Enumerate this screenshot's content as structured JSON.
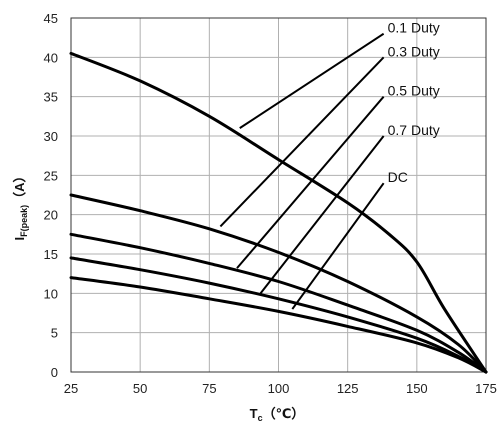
{
  "chart_data": {
    "type": "line",
    "xlabel": {
      "main": "T",
      "sub": "c",
      "unit": "（℃）"
    },
    "ylabel": {
      "main": "I",
      "sub": "F(peak)",
      "unit": "（A）"
    },
    "xlim": [
      25,
      175
    ],
    "ylim": [
      0,
      45
    ],
    "xticks": [
      "25",
      "50",
      "75",
      "100",
      "125",
      "150",
      "175"
    ],
    "yticks": [
      "0",
      "5",
      "10",
      "15",
      "20",
      "25",
      "30",
      "35",
      "40",
      "45"
    ],
    "grid": true,
    "colors": {
      "curve": "#000000",
      "grid": "#b0b0b0",
      "axis": "#333333"
    },
    "series": [
      {
        "name": "0.1 Duty",
        "x": [
          25,
          50,
          75,
          100,
          125,
          140,
          150,
          160,
          175
        ],
        "y": [
          40.5,
          37,
          32.5,
          27,
          21.5,
          17.5,
          14,
          8,
          0
        ]
      },
      {
        "name": "0.3 Duty",
        "x": [
          25,
          50,
          75,
          100,
          125,
          150,
          165,
          175
        ],
        "y": [
          22.5,
          20.5,
          18.2,
          15.2,
          11.5,
          7,
          3.5,
          0
        ]
      },
      {
        "name": "0.5 Duty",
        "x": [
          25,
          50,
          75,
          100,
          125,
          150,
          165,
          175
        ],
        "y": [
          17.5,
          15.8,
          13.8,
          11.5,
          8.5,
          5.3,
          2.5,
          0
        ]
      },
      {
        "name": "0.7 Duty",
        "x": [
          25,
          50,
          75,
          100,
          125,
          150,
          165,
          175
        ],
        "y": [
          14.5,
          13,
          11.3,
          9.3,
          7,
          4.3,
          2,
          0
        ]
      },
      {
        "name": "DC",
        "x": [
          25,
          50,
          75,
          100,
          125,
          150,
          165,
          175
        ],
        "y": [
          12,
          10.8,
          9.3,
          7.7,
          5.8,
          3.7,
          1.8,
          0
        ]
      }
    ],
    "callouts": [
      {
        "label": "0.1 Duty",
        "from": [
          86,
          31
        ],
        "to": [
          138,
          43
        ]
      },
      {
        "label": "0.3 Duty",
        "from": [
          79,
          18.5
        ],
        "to": [
          138,
          40
        ]
      },
      {
        "label": "0.5 Duty",
        "from": [
          85,
          13.2
        ],
        "to": [
          138,
          35
        ]
      },
      {
        "label": "0.7 Duty",
        "from": [
          93.5,
          10
        ],
        "to": [
          138,
          30
        ]
      },
      {
        "label": "DC",
        "from": [
          105,
          8
        ],
        "to": [
          138,
          24
        ]
      }
    ]
  }
}
